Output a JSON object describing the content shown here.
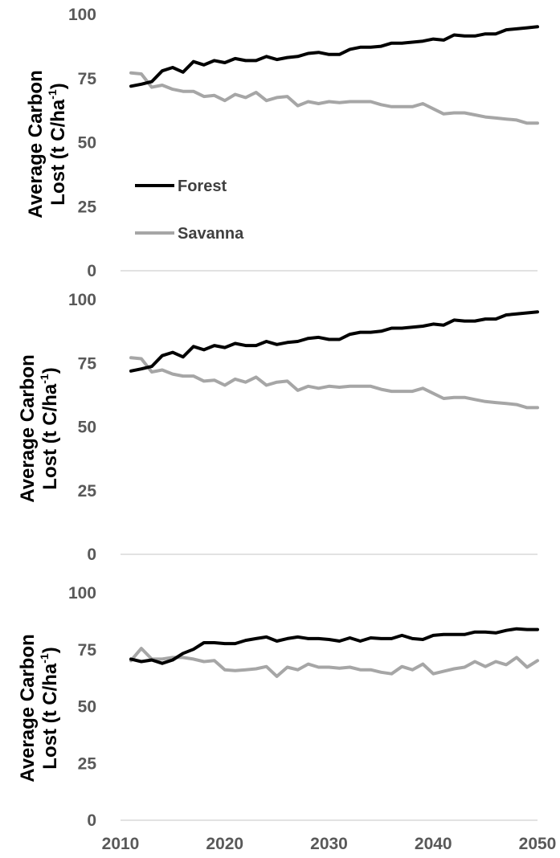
{
  "chart_data": [
    {
      "type": "line",
      "panel": "top",
      "ylabel": "Average Carbon Lost (t C/ha⁻¹)",
      "ylabel_lines": [
        "Average Carbon",
        "Lost (t C/ha",
        "-1",
        ")"
      ],
      "ylim": [
        0,
        100
      ],
      "yticks": [
        0,
        25,
        50,
        75,
        100
      ],
      "xlim": [
        2010,
        2050
      ],
      "show_x_ticks": false,
      "grid": false,
      "legend": {
        "position": "middle-left",
        "entries": [
          "Forest",
          "Savanna"
        ]
      },
      "x": [
        2011,
        2012,
        2013,
        2014,
        2015,
        2016,
        2017,
        2018,
        2019,
        2020,
        2021,
        2022,
        2023,
        2024,
        2025,
        2026,
        2027,
        2028,
        2029,
        2030,
        2031,
        2032,
        2033,
        2034,
        2035,
        2036,
        2037,
        2038,
        2039,
        2040,
        2041,
        2042,
        2043,
        2044,
        2045,
        2046,
        2047,
        2048,
        2049,
        2050
      ],
      "series": [
        {
          "name": "Forest",
          "color": "#000000",
          "values": [
            72,
            72.8,
            73.8,
            78,
            79.3,
            77.5,
            81.6,
            80.3,
            82,
            81.2,
            82.8,
            82,
            82,
            83.6,
            82.4,
            83.2,
            83.6,
            84.8,
            85.2,
            84.4,
            84.4,
            86.4,
            87.2,
            87.2,
            87.6,
            88.8,
            88.8,
            89.2,
            89.6,
            90.4,
            90,
            92,
            91.6,
            91.6,
            92.4,
            92.4,
            94,
            94.4,
            94.8,
            95.2
          ]
        },
        {
          "name": "Savanna",
          "color": "#a6a6a6",
          "values": [
            77.2,
            76.8,
            71.6,
            72.4,
            70.8,
            70,
            70,
            68,
            68.4,
            66.4,
            68.8,
            67.6,
            69.6,
            66.4,
            67.6,
            68,
            64.4,
            66,
            65.2,
            66,
            65.6,
            66,
            66,
            66,
            64.8,
            64,
            64,
            64,
            65.2,
            63.2,
            61.2,
            61.6,
            61.6,
            60.8,
            60,
            59.6,
            59.2,
            58.8,
            57.6,
            57.6
          ]
        }
      ]
    },
    {
      "type": "line",
      "panel": "middle",
      "ylabel": "Average Carbon Lost (t C/ha⁻¹)",
      "ylabel_lines": [
        "Average Carbon",
        "Lost (t C/ha",
        "-1",
        ")"
      ],
      "ylim": [
        0,
        100
      ],
      "yticks": [
        0,
        25,
        50,
        75,
        100
      ],
      "xlim": [
        2010,
        2050
      ],
      "show_x_ticks": false,
      "grid": false,
      "x": [
        2011,
        2012,
        2013,
        2014,
        2015,
        2016,
        2017,
        2018,
        2019,
        2020,
        2021,
        2022,
        2023,
        2024,
        2025,
        2026,
        2027,
        2028,
        2029,
        2030,
        2031,
        2032,
        2033,
        2034,
        2035,
        2036,
        2037,
        2038,
        2039,
        2040,
        2041,
        2042,
        2043,
        2044,
        2045,
        2046,
        2047,
        2048,
        2049,
        2050
      ],
      "series": [
        {
          "name": "Forest",
          "color": "#000000",
          "values": [
            72,
            72.8,
            73.8,
            78,
            79.3,
            77.5,
            81.6,
            80.3,
            82,
            81.2,
            82.8,
            82,
            82,
            83.6,
            82.4,
            83.2,
            83.6,
            84.8,
            85.2,
            84.4,
            84.4,
            86.4,
            87.2,
            87.2,
            87.6,
            88.8,
            88.8,
            89.2,
            89.6,
            90.4,
            90,
            92,
            91.6,
            91.6,
            92.4,
            92.4,
            94,
            94.4,
            94.8,
            95.2
          ]
        },
        {
          "name": "Savanna",
          "color": "#a6a6a6",
          "values": [
            77.2,
            76.8,
            71.6,
            72.4,
            70.8,
            70,
            70,
            68,
            68.4,
            66.4,
            68.8,
            67.6,
            69.6,
            66.4,
            67.6,
            68,
            64.4,
            66,
            65.2,
            66,
            65.6,
            66,
            66,
            66,
            64.8,
            64,
            64,
            64,
            65.2,
            63.2,
            61.2,
            61.6,
            61.6,
            60.8,
            60,
            59.6,
            59.2,
            58.8,
            57.6,
            57.6
          ]
        }
      ]
    },
    {
      "type": "line",
      "panel": "bottom",
      "ylabel": "Average Carbon Lost (t C/ha⁻¹)",
      "ylabel_lines": [
        "Average Carbon",
        "Lost (t C/ha",
        "-1",
        ")"
      ],
      "ylim": [
        0,
        100
      ],
      "yticks": [
        0,
        25,
        50,
        75,
        100
      ],
      "xlim": [
        2010,
        2050
      ],
      "xticks": [
        2010,
        2020,
        2030,
        2040,
        2050
      ],
      "show_x_ticks": true,
      "grid": false,
      "x": [
        2011,
        2012,
        2013,
        2014,
        2015,
        2016,
        2017,
        2018,
        2019,
        2020,
        2021,
        2022,
        2023,
        2024,
        2025,
        2026,
        2027,
        2028,
        2029,
        2030,
        2031,
        2032,
        2033,
        2034,
        2035,
        2036,
        2037,
        2038,
        2039,
        2040,
        2041,
        2042,
        2043,
        2044,
        2045,
        2046,
        2047,
        2048,
        2049,
        2050
      ],
      "series": [
        {
          "name": "Forest",
          "color": "#000000",
          "values": [
            70.9,
            69.8,
            70.5,
            69,
            70.5,
            73.4,
            75.2,
            78.1,
            78.1,
            77.7,
            77.7,
            79.1,
            79.9,
            80.6,
            78.8,
            79.9,
            80.6,
            79.9,
            79.9,
            79.5,
            78.8,
            80.2,
            78.8,
            80.2,
            79.9,
            79.9,
            81.3,
            79.9,
            79.5,
            81.3,
            81.7,
            81.7,
            81.7,
            82.8,
            82.8,
            82.4,
            83.5,
            84.2,
            83.9,
            83.9
          ]
        },
        {
          "name": "Savanna",
          "color": "#a6a6a6",
          "values": [
            70.2,
            75.6,
            70.9,
            70.9,
            71.6,
            71.6,
            70.9,
            69.8,
            70.2,
            66.2,
            65.8,
            66.2,
            66.6,
            67.6,
            63.3,
            67.3,
            66.2,
            68.7,
            67.3,
            67.3,
            66.9,
            67.3,
            66.2,
            66.2,
            65.1,
            64.4,
            67.6,
            66.2,
            68.7,
            64.4,
            65.5,
            66.6,
            67.3,
            69.8,
            67.6,
            69.8,
            68.4,
            71.6,
            67.3,
            70.2
          ]
        }
      ]
    }
  ]
}
